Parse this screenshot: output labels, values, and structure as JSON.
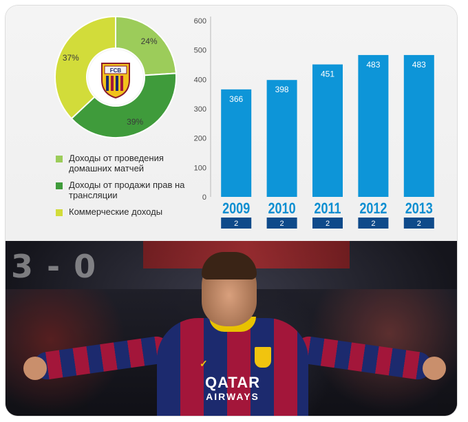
{
  "chart_data": [
    {
      "type": "pie",
      "labels": [
        "Доходы от проведения домашних матчей",
        "Доходы от продажи прав на трансляции",
        "Коммерческие доходы"
      ],
      "values": [
        24,
        39,
        37
      ],
      "value_labels": [
        "24%",
        "39%",
        "37%"
      ],
      "colors": [
        "#9ccc5a",
        "#3f9b3b",
        "#d2dc3a"
      ],
      "legend_position": "bottom-left",
      "center_logo_text": "FCB"
    },
    {
      "type": "bar",
      "categories": [
        "2009",
        "2010",
        "2011",
        "2012",
        "2013"
      ],
      "values": [
        366,
        398,
        451,
        483,
        483
      ],
      "data_labels": [
        "366",
        "398",
        "451",
        "483",
        "483"
      ],
      "ylim": [
        0,
        600
      ],
      "yticks": [
        "0",
        "100",
        "200",
        "300",
        "400",
        "500",
        "600"
      ],
      "ranks": [
        "2",
        "2",
        "2",
        "2",
        "2"
      ],
      "bar_color": "#0d95d8",
      "year_color": "#0d8ed1",
      "rank_box_color": "#0e4a8a",
      "grid": false
    }
  ],
  "photo": {
    "scoreboard": "3 - 0",
    "sponsor_line1": "QATAR",
    "sponsor_line2": "AIRWAYS",
    "badge_text": "FCB"
  }
}
